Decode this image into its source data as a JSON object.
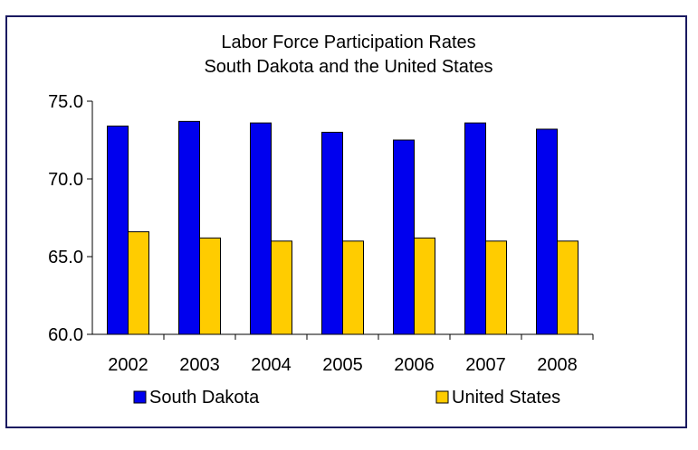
{
  "chart_data": {
    "type": "bar",
    "title_lines": [
      "Labor Force Participation Rates",
      "South Dakota and the United States"
    ],
    "categories": [
      "2002",
      "2003",
      "2004",
      "2005",
      "2006",
      "2007",
      "2008"
    ],
    "series": [
      {
        "name": "South Dakota",
        "color": "#0000ee",
        "values": [
          73.4,
          73.7,
          73.6,
          73.0,
          72.5,
          73.6,
          73.2
        ]
      },
      {
        "name": "United States",
        "color": "#ffcc00",
        "values": [
          66.6,
          66.2,
          66.0,
          66.0,
          66.2,
          66.0,
          66.0
        ]
      }
    ],
    "ylim": [
      60.0,
      75.0
    ],
    "yticks": [
      "60.0",
      "65.0",
      "70.0",
      "75.0"
    ],
    "ytick_values": [
      60,
      65,
      70,
      75
    ],
    "grid": false,
    "legend_position": "bottom"
  }
}
